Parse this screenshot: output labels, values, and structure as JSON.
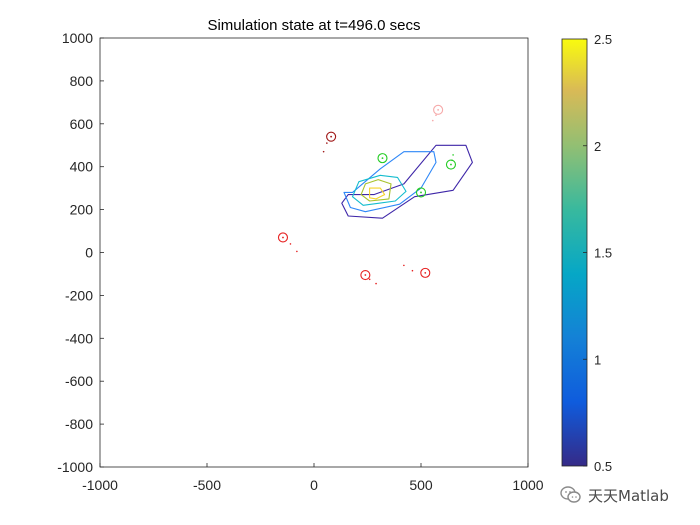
{
  "chart_data": {
    "type": "contour",
    "title": "Simulation state at t=496.0 secs",
    "xlabel": "",
    "ylabel": "",
    "xlim": [
      -1000,
      1000
    ],
    "ylim": [
      -1000,
      1000
    ],
    "xticks": [
      -1000,
      -500,
      0,
      500,
      1000
    ],
    "yticks": [
      -1000,
      -800,
      -600,
      -400,
      -200,
      0,
      200,
      400,
      600,
      800,
      1000
    ],
    "grid": false,
    "colorbar": {
      "colormap": "parula",
      "range": [
        0.5,
        2.5
      ],
      "ticks": [
        0.5,
        1,
        1.5,
        2,
        2.5
      ],
      "tick_labels": [
        "0.5",
        "1",
        "1.5",
        "2",
        "2.5"
      ]
    },
    "contours": [
      {
        "level": 0.6,
        "color": "#3e26a8",
        "points": [
          [
            160,
            270
          ],
          [
            280,
            270
          ],
          [
            420,
            320
          ],
          [
            570,
            500
          ],
          [
            710,
            500
          ],
          [
            740,
            420
          ],
          [
            650,
            290
          ],
          [
            470,
            260
          ],
          [
            320,
            160
          ],
          [
            160,
            170
          ],
          [
            130,
            230
          ]
        ]
      },
      {
        "level": 1.0,
        "color": "#2e87f7",
        "points": [
          [
            180,
            280
          ],
          [
            310,
            390
          ],
          [
            420,
            470
          ],
          [
            560,
            470
          ],
          [
            570,
            420
          ],
          [
            500,
            300
          ],
          [
            400,
            225
          ],
          [
            240,
            190
          ],
          [
            170,
            210
          ],
          [
            140,
            280
          ]
        ]
      },
      {
        "level": 1.5,
        "color": "#13bdce",
        "points": [
          [
            210,
            330
          ],
          [
            310,
            360
          ],
          [
            390,
            350
          ],
          [
            430,
            285
          ],
          [
            380,
            240
          ],
          [
            230,
            220
          ],
          [
            180,
            260
          ]
        ]
      },
      {
        "level": 2.0,
        "color": "#a8c22c",
        "points": [
          [
            240,
            320
          ],
          [
            300,
            340
          ],
          [
            360,
            320
          ],
          [
            350,
            250
          ],
          [
            260,
            240
          ],
          [
            220,
            270
          ]
        ]
      },
      {
        "level": 2.4,
        "color": "#f5d42a",
        "points": [
          [
            260,
            300
          ],
          [
            310,
            300
          ],
          [
            330,
            270
          ],
          [
            290,
            250
          ],
          [
            260,
            255
          ]
        ]
      }
    ],
    "agents": [
      {
        "x": 580,
        "y": 665,
        "color": "#f6aaaa",
        "trail": [
          [
            570,
            640
          ],
          [
            555,
            615
          ]
        ]
      },
      {
        "x": 80,
        "y": 540,
        "color": "#a01818",
        "trail": [
          [
            60,
            510
          ],
          [
            45,
            470
          ]
        ]
      },
      {
        "x": -145,
        "y": 70,
        "color": "#e62020",
        "trail": [
          [
            -110,
            40
          ],
          [
            -80,
            5
          ]
        ]
      },
      {
        "x": 240,
        "y": -105,
        "color": "#e62020",
        "trail": [
          [
            260,
            -125
          ],
          [
            290,
            -145
          ]
        ]
      },
      {
        "x": 520,
        "y": -95,
        "color": "#e62020",
        "trail": [
          [
            460,
            -85
          ],
          [
            420,
            -60
          ]
        ]
      },
      {
        "x": 320,
        "y": 440,
        "color": "#22cc22",
        "trail": []
      },
      {
        "x": 640,
        "y": 410,
        "color": "#22cc22",
        "trail": [
          [
            645,
            430
          ],
          [
            650,
            455
          ]
        ]
      },
      {
        "x": 500,
        "y": 280,
        "color": "#22cc22",
        "trail": [
          [
            490,
            295
          ]
        ]
      }
    ]
  },
  "watermark": {
    "text": "天天Matlab",
    "icon": "wechat-icon"
  }
}
